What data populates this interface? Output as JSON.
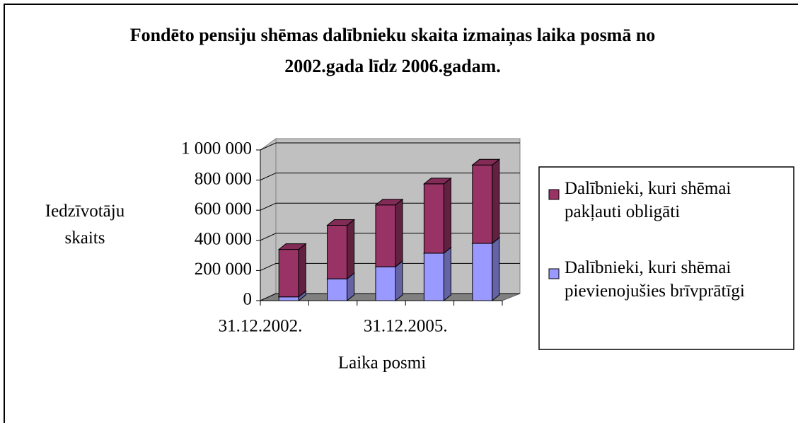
{
  "chart_data": {
    "type": "bar3d_stacked",
    "title": "Fondēto pensiju shēmas dalībnieku skaita izmaiņas laika posmā no 2002.gada līdz 2006.gadam.",
    "y_label": "Iedzīvotāju skaits",
    "x_label": "Laika posmi",
    "categories": [
      "31.12.2002.",
      null,
      null,
      "31.12.2005.",
      null
    ],
    "series": [
      {
        "name": "Dalībnieki, kuri shēmai pakļauti obligāti",
        "color": "#993366",
        "values": [
          315000,
          355000,
          410000,
          460000,
          520000
        ]
      },
      {
        "name": "Dalībnieki, kuri shēmai pievienojušies brīvprātīgi",
        "color": "#9999ff",
        "values": [
          25000,
          145000,
          225000,
          315000,
          380000
        ]
      }
    ],
    "ylim": [
      0,
      1000000
    ],
    "yticks": [
      0,
      {
        "value": 200000,
        "label": "200 000"
      },
      {
        "value": 400000,
        "label": "400 000"
      },
      {
        "value": 600000,
        "label": "600 000"
      },
      {
        "value": 800000,
        "label": "800 000"
      },
      {
        "value": 1000000,
        "label": "1 000 000"
      }
    ],
    "grid": true,
    "legend": "right"
  }
}
